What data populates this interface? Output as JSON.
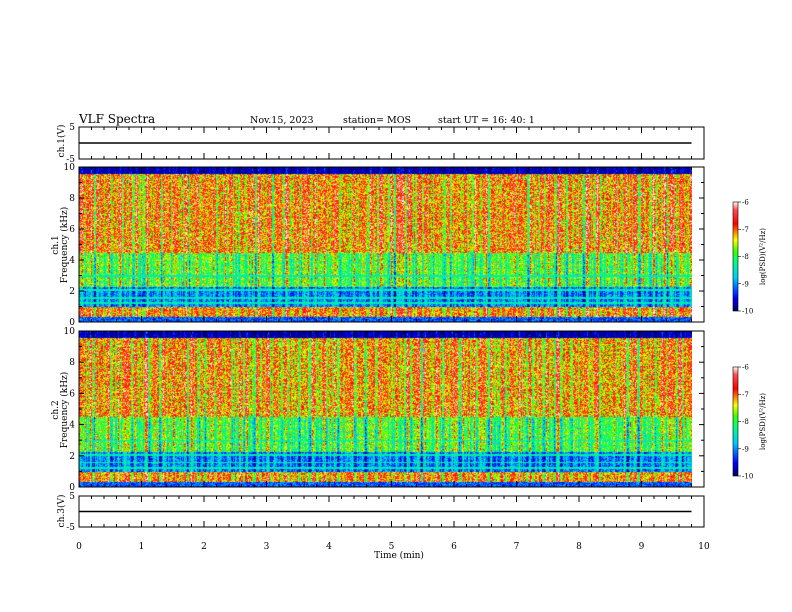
{
  "header": {
    "title": "VLF Spectra",
    "date": "Nov.15, 2023",
    "station": "station= MOS",
    "start": "start  UT  =   16: 40: 1"
  },
  "chart_data": [
    {
      "type": "line",
      "panel": "ch1-waveform",
      "ylabel": "ch.1(V)",
      "ylim": [
        -5,
        5
      ],
      "yticks": [
        "5",
        "-5"
      ],
      "series": [
        {
          "x": [
            0,
            9.8
          ],
          "y": [
            0,
            0
          ]
        }
      ]
    },
    {
      "type": "heatmap",
      "panel": "ch1-spectrogram",
      "ylabel": "ch.1\nFrequency (kHz)",
      "ylim": [
        0,
        10
      ],
      "yticks": [
        "0",
        "2",
        "4",
        "6",
        "8",
        "10"
      ],
      "z_range": [
        -10,
        -6
      ],
      "colorbar": {
        "label": "log(PSD)(V²/Hz)",
        "ticks": [
          "-6",
          "-7",
          "-8",
          "-9",
          "-10"
        ]
      },
      "x_extent": [
        0,
        9.8
      ]
    },
    {
      "type": "heatmap",
      "panel": "ch2-spectrogram",
      "ylabel": "ch.2\nFrequency (kHz)",
      "ylim": [
        0,
        10
      ],
      "yticks": [
        "0",
        "2",
        "4",
        "6",
        "8",
        "10"
      ],
      "z_range": [
        -10,
        -6
      ],
      "colorbar": {
        "label": "log(PSD)(V²/Hz)",
        "ticks": [
          "-6",
          "-7",
          "-8",
          "-9",
          "-10"
        ]
      },
      "x_extent": [
        0,
        9.8
      ]
    },
    {
      "type": "line",
      "panel": "ch3-waveform",
      "ylabel": "ch.3(V)",
      "ylim": [
        -5,
        5
      ],
      "yticks": [
        "5",
        "-5"
      ],
      "series": [
        {
          "x": [
            0,
            9.8
          ],
          "y": [
            0,
            0
          ]
        }
      ]
    }
  ],
  "xaxis": {
    "label": "Time  (min)",
    "xlim": [
      0,
      10
    ],
    "ticks": [
      "0",
      "1",
      "2",
      "3",
      "4",
      "5",
      "6",
      "7",
      "8",
      "9",
      "10"
    ]
  },
  "colors": {
    "cmap": [
      "#000080",
      "#0000ff",
      "#00c8ff",
      "#00ff80",
      "#80ff00",
      "#ffff00",
      "#ff8000",
      "#ff0000",
      "#ffe0e0"
    ]
  }
}
